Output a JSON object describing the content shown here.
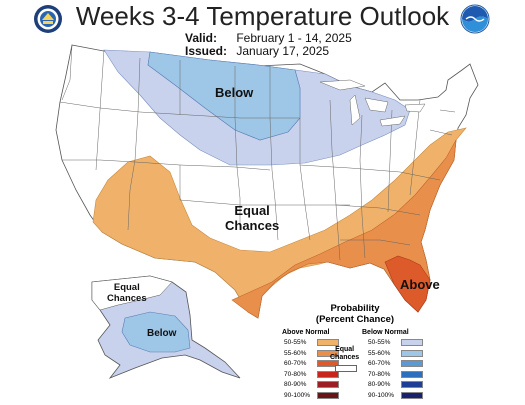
{
  "header": {
    "title": "Weeks 3-4 Temperature Outlook",
    "valid_label": "Valid:",
    "valid_value": "February 1 - 14, 2025",
    "issued_label": "Issued:",
    "issued_value": "January 17, 2025"
  },
  "logos": {
    "left": "commerce-seal",
    "right": "noaa-logo"
  },
  "map_labels": {
    "below_north": "Below",
    "equal_center": [
      "Equal",
      "Chances"
    ],
    "above_se": "Above",
    "alaska_equal": [
      "Equal",
      "Chances"
    ],
    "alaska_below": "Below"
  },
  "legend": {
    "title": [
      "Probability",
      "(Percent Chance)"
    ],
    "above_heading": "Above Normal",
    "below_heading": "Below Normal",
    "equal_label": [
      "Equal",
      "Chances"
    ],
    "above": [
      {
        "range": "50-55%",
        "color": "#f0b26a"
      },
      {
        "range": "55-60%",
        "color": "#e88f4b"
      },
      {
        "range": "60-70%",
        "color": "#dd5a2b"
      },
      {
        "range": "70-80%",
        "color": "#c8261d"
      },
      {
        "range": "80-90%",
        "color": "#9c1f25"
      },
      {
        "range": "90-100%",
        "color": "#6b1418"
      }
    ],
    "below": [
      {
        "range": "50-55%",
        "color": "#c8d2ec"
      },
      {
        "range": "55-60%",
        "color": "#9ec6e6"
      },
      {
        "range": "60-70%",
        "color": "#5a9bd5"
      },
      {
        "range": "70-80%",
        "color": "#2d6fbd"
      },
      {
        "range": "80-90%",
        "color": "#1e3f95"
      },
      {
        "range": "90-100%",
        "color": "#1a1f6e"
      }
    ]
  },
  "colors": {
    "above_50_55": "#f0b26a",
    "above_55_60": "#e88f4b",
    "above_60_70": "#dd5a2b",
    "below_50_55": "#c8d2ec",
    "below_55_60": "#9ec6e6"
  }
}
